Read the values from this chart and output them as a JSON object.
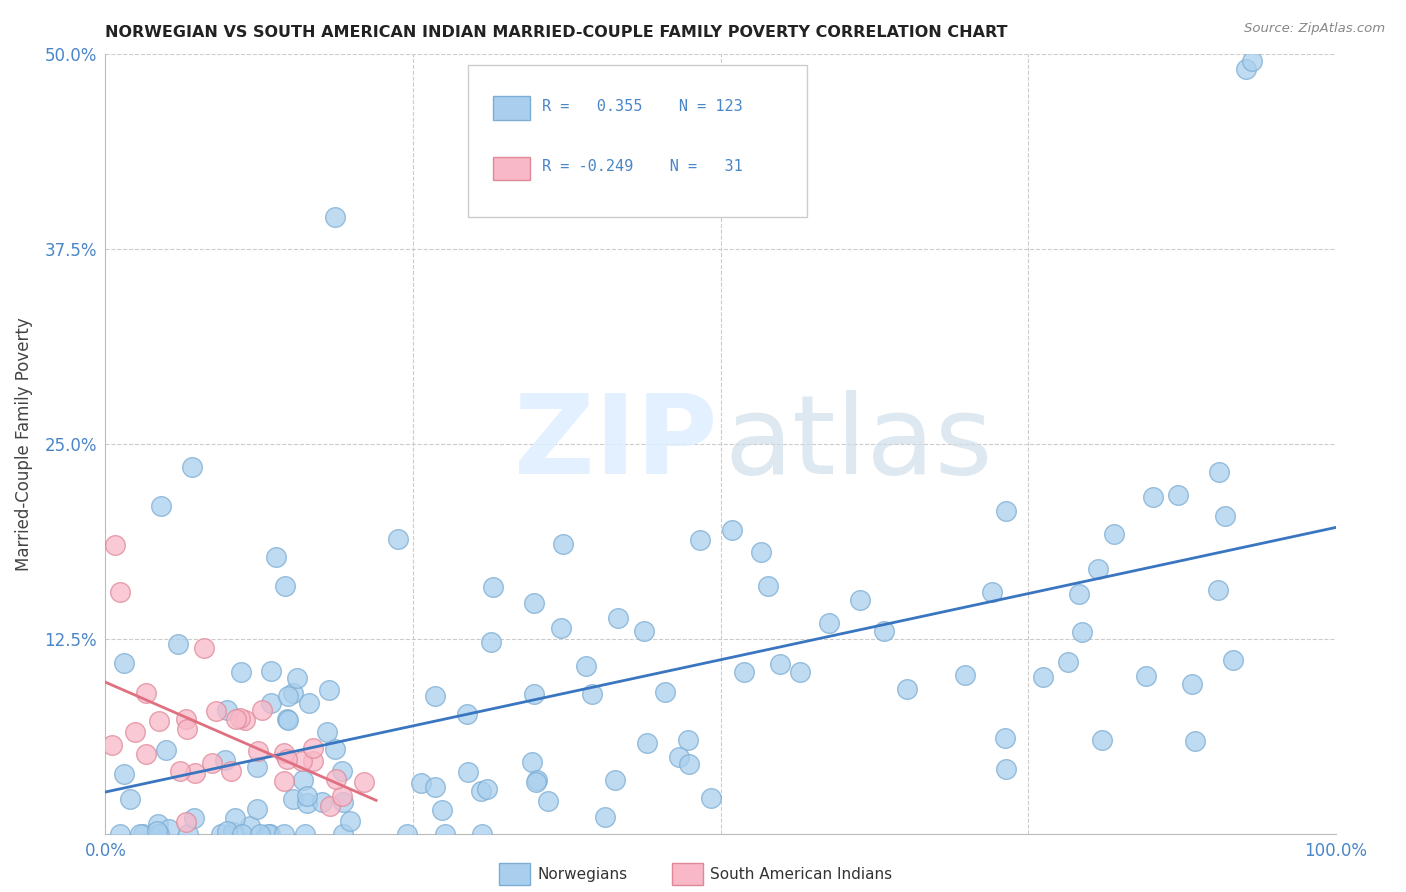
{
  "title": "NORWEGIAN VS SOUTH AMERICAN INDIAN MARRIED-COUPLE FAMILY POVERTY CORRELATION CHART",
  "source": "Source: ZipAtlas.com",
  "ylabel": "Married-Couple Family Poverty",
  "xlim": [
    0,
    1.0
  ],
  "ylim": [
    0,
    0.5
  ],
  "xticks": [
    0.0,
    0.25,
    0.5,
    0.75,
    1.0
  ],
  "xticklabels": [
    "0.0%",
    "",
    "",
    "",
    "100.0%"
  ],
  "yticks": [
    0.0,
    0.125,
    0.25,
    0.375,
    0.5
  ],
  "yticklabels": [
    "",
    "12.5%",
    "25.0%",
    "37.5%",
    "50.0%"
  ],
  "norwegian_color": "#aacfee",
  "norwegian_edge": "#7badd4",
  "south_american_color": "#f8b8c8",
  "south_american_edge": "#e08898",
  "trend_norwegian_color": "#3a76c0",
  "trend_south_american_color": "#e07080",
  "legend_norwegian_label": "Norwegians",
  "legend_south_american_label": "South American Indians",
  "r_norwegian": 0.355,
  "n_norwegian": 123,
  "r_south_american": -0.249,
  "n_south_american": 31,
  "background_color": "#ffffff",
  "grid_color": "#cccccc",
  "title_color": "#222222",
  "source_color": "#888888",
  "tick_color": "#4a86c8",
  "ylabel_color": "#444444"
}
